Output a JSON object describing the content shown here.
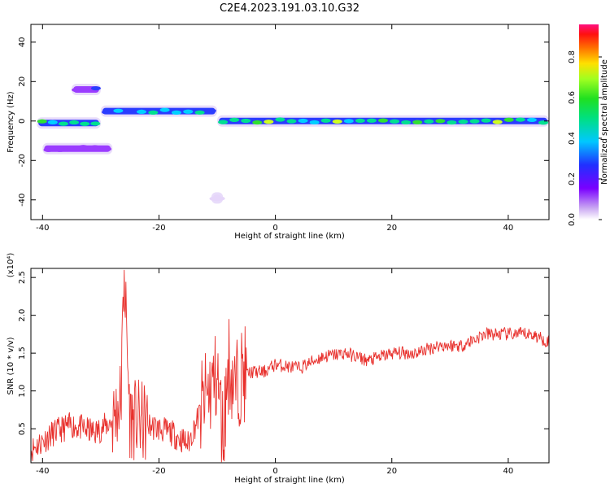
{
  "title": "C2E4.2023.191.03.10.G32",
  "chart_data": [
    {
      "type": "heatmap",
      "xlabel": "Height of straight line (km)",
      "ylabel": "Frequency (Hz)",
      "xlim": [
        -42,
        47
      ],
      "ylim": [
        -50,
        49
      ],
      "xticks": [
        -40,
        -20,
        0,
        20,
        40
      ],
      "yticks": [
        -40,
        -20,
        0,
        20,
        40
      ],
      "colorbar": {
        "label": "Normalized spectral amplitude",
        "range": [
          0.0,
          0.96
        ],
        "ticks": [
          "0.0",
          "0.2",
          "0.4",
          "0.6",
          "0.8"
        ],
        "colormap": "rainbow (white-violet to red-magenta)"
      },
      "features": [
        {
          "x": [
            -41,
            -30
          ],
          "freq": -1,
          "amplitude": 0.7
        },
        {
          "x": [
            -30,
            -10
          ],
          "freq": 5,
          "amplitude": 0.6
        },
        {
          "x": [
            -10,
            47
          ],
          "freq": 0,
          "amplitude": 0.8
        },
        {
          "x": [
            -35,
            -30
          ],
          "freq": 16,
          "amplitude": 0.35
        },
        {
          "x": [
            -40,
            -28
          ],
          "freq": -14,
          "amplitude": 0.3
        },
        {
          "x": [
            -11,
            -9
          ],
          "freq": -39,
          "amplitude": 0.1
        }
      ]
    },
    {
      "type": "line",
      "xlabel": "Height of straight line (km)",
      "ylabel": "SNR (10 * v/v)",
      "yscale_note": "(x10⁴)",
      "xlim": [
        -42,
        47
      ],
      "ylim": [
        0.05,
        2.62
      ],
      "xticks": [
        -40,
        -20,
        0,
        20,
        40
      ],
      "yticks": [
        "0.5",
        "1.0",
        "1.5",
        "2.0",
        "2.5"
      ],
      "series": [
        {
          "color": "#e8302c",
          "x": [
            -42,
            -38,
            -35,
            -31,
            -28,
            -26.5,
            -26,
            -25,
            -22,
            -18,
            -15,
            -12,
            -10,
            -9,
            -8,
            -7,
            -6,
            -4,
            -2,
            0,
            4,
            8,
            12,
            16,
            20,
            24,
            28,
            32,
            36,
            40,
            44,
            47
          ],
          "y": [
            0.22,
            0.45,
            0.55,
            0.45,
            0.6,
            0.9,
            2.6,
            0.65,
            0.55,
            0.45,
            0.3,
            0.9,
            1.2,
            0.4,
            1.4,
            1.0,
            1.2,
            1.25,
            1.25,
            1.35,
            1.3,
            1.45,
            1.5,
            1.4,
            1.5,
            1.5,
            1.6,
            1.6,
            1.75,
            1.75,
            1.75,
            1.65
          ]
        }
      ]
    }
  ],
  "colors": {
    "line": "#e8302c",
    "axis": "#000000"
  }
}
